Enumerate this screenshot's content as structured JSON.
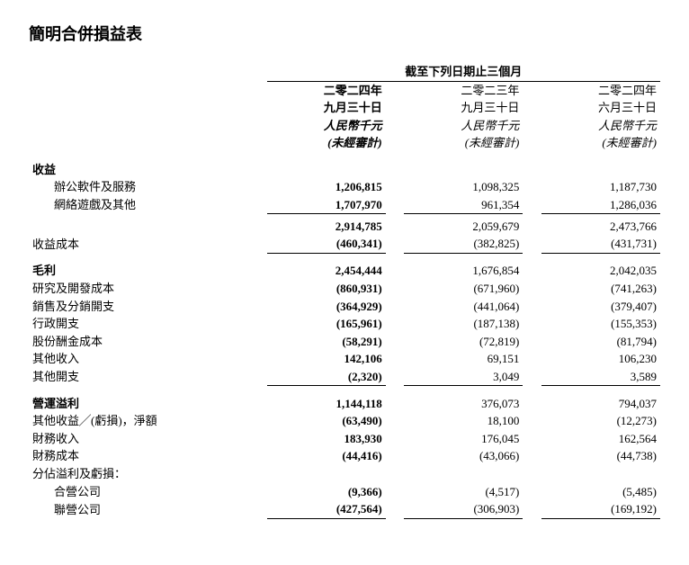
{
  "title": "簡明合併損益表",
  "period_header": "截至下列日期止三個月",
  "columns": [
    {
      "line1": "二零二四年",
      "line2": "九月三十日",
      "line3": "人民幣千元",
      "line4": "(未經審計)",
      "bold": true
    },
    {
      "line1": "二零二三年",
      "line2": "九月三十日",
      "line3": "人民幣千元",
      "line4": "(未經審計)",
      "bold": false
    },
    {
      "line1": "二零二四年",
      "line2": "六月三十日",
      "line3": "人民幣千元",
      "line4": "(未經審計)",
      "bold": false
    }
  ],
  "sections": {
    "revenue": {
      "header": "收益",
      "items": [
        {
          "label": "辦公軟件及服務",
          "v": [
            "1,206,815",
            "1,098,325",
            "1,187,730"
          ]
        },
        {
          "label": "網絡遊戲及其他",
          "v": [
            "1,707,970",
            "961,354",
            "1,286,036"
          ]
        }
      ],
      "subtotal": {
        "label": "",
        "v": [
          "2,914,785",
          "2,059,679",
          "2,473,766"
        ]
      },
      "cost": {
        "label": "收益成本",
        "v": [
          "(460,341)",
          "(382,825)",
          "(431,731)"
        ]
      }
    },
    "gross": {
      "header": "毛利",
      "header_v": [
        "2,454,444",
        "1,676,854",
        "2,042,035"
      ],
      "items": [
        {
          "label": "研究及開發成本",
          "v": [
            "(860,931)",
            "(671,960)",
            "(741,263)"
          ]
        },
        {
          "label": "銷售及分銷開支",
          "v": [
            "(364,929)",
            "(441,064)",
            "(379,407)"
          ]
        },
        {
          "label": "行政開支",
          "v": [
            "(165,961)",
            "(187,138)",
            "(155,353)"
          ]
        },
        {
          "label": "股份酬金成本",
          "v": [
            "(58,291)",
            "(72,819)",
            "(81,794)"
          ]
        },
        {
          "label": "其他收入",
          "v": [
            "142,106",
            "69,151",
            "106,230"
          ]
        },
        {
          "label": "其他開支",
          "v": [
            "(2,320)",
            "3,049",
            "3,589"
          ]
        }
      ]
    },
    "operating": {
      "header": "營運溢利",
      "header_v": [
        "1,144,118",
        "376,073",
        "794,037"
      ],
      "items": [
        {
          "label": "其他收益╱(虧損)，淨額",
          "v": [
            "(63,490)",
            "18,100",
            "(12,273)"
          ]
        },
        {
          "label": "財務收入",
          "v": [
            "183,930",
            "176,045",
            "162,564"
          ]
        },
        {
          "label": "財務成本",
          "v": [
            "(44,416)",
            "(43,066)",
            "(44,738)"
          ]
        }
      ],
      "share_label": "分佔溢利及虧損：",
      "share_items": [
        {
          "label": "合營公司",
          "v": [
            "(9,366)",
            "(4,517)",
            "(5,485)"
          ]
        },
        {
          "label": "聯營公司",
          "v": [
            "(427,564)",
            "(306,903)",
            "(169,192)"
          ]
        }
      ]
    }
  }
}
